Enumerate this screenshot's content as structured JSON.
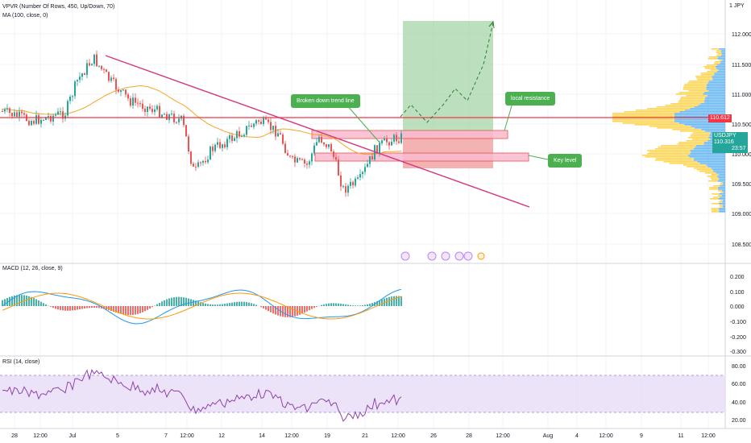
{
  "indicators": {
    "vpvr": "VPVR (Number Of Rows, 450, Up/Down, 70)",
    "ma": "MA (100, close, 0)",
    "macd": "MACD (12, 26, close, 9)",
    "rsi": "RSI (14, close)"
  },
  "annotations": {
    "trend_break": "Broken down trend line",
    "local_resistance": "local resistance",
    "key_level": "Key level"
  },
  "price_axis": {
    "labels": [
      "112.000",
      "111.500",
      "111.000",
      "110.500",
      "110.000",
      "109.500",
      "109.000",
      "108.500"
    ],
    "top_label": "1 JPY",
    "red_tag": "110.612",
    "green_tag_symbol": "USDJPY",
    "green_tag_price": "110.316",
    "green_tag_time": "23:57"
  },
  "macd_axis": [
    "0.200",
    "0.100",
    "0.000",
    "-0.100",
    "-0.200",
    "-0.300"
  ],
  "rsi_axis": [
    "80.00",
    "60.00",
    "40.00",
    "20.00"
  ],
  "time_axis": [
    "28",
    "12:00",
    "Jul",
    "5",
    "7",
    "12:00",
    "12",
    "14",
    "12:00",
    "19",
    "21",
    "12:00",
    "26",
    "28",
    "12:00",
    "Aug",
    "4",
    "12:00",
    "9",
    "11",
    "12:00"
  ],
  "colors": {
    "bull": "#26a69a",
    "bear": "#ef5350",
    "ma": "#f5a623",
    "trend": "#d6357d",
    "resistance": "#f23645",
    "macd": "#2196f3",
    "signal": "#ff9800",
    "rsi": "#8e44ad",
    "rsi_band": "#e9dcf7",
    "target_zone": "#a5d6a7",
    "stop_zone": "#ef9a9a",
    "callout": "#4caf50"
  }
}
